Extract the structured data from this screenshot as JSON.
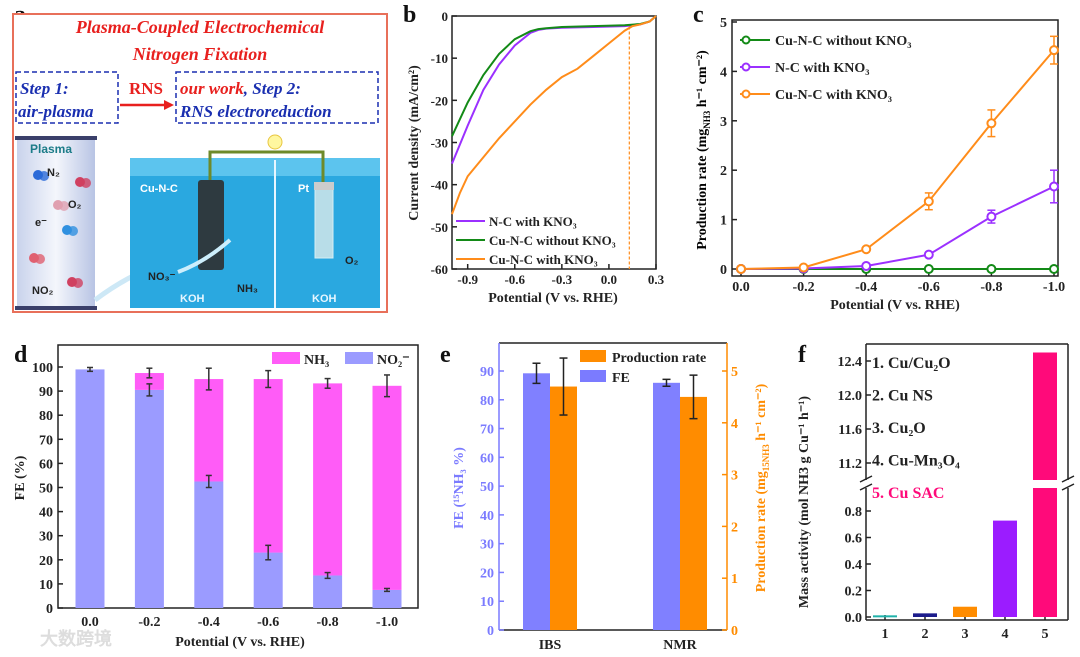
{
  "panel_labels": [
    "a",
    "b",
    "c",
    "d",
    "e",
    "f"
  ],
  "panel_a": {
    "title_line1": "Plasma-Coupled Electrochemical",
    "title_line2": "Nitrogen Fixation",
    "step1_line1": "Step 1:",
    "step1_line2": "air-plasma",
    "arrow_label": "RNS",
    "step2_line1_a": "our work",
    "step2_line1_b": ", Step 2:",
    "step2_line2": "RNS electroreduction",
    "plasma_label": "Plasma",
    "species": {
      "n2": "N₂",
      "o2": "O₂",
      "e": "e⁻",
      "no2": "NO₂",
      "no3": "NO₃⁻",
      "nh3": "NH₃",
      "o2_anode": "O₂"
    },
    "cathode_label": "Cu-N-C",
    "anode_label": "Pt",
    "electrolyte_left": "KOH",
    "electrolyte_right": "KOH",
    "colors": {
      "title": "#e8201e",
      "step": "#1a2fb0",
      "water": "#2aa8e0",
      "border": "#e8705a"
    }
  },
  "chart_data": [
    {
      "id": "b",
      "type": "line",
      "xlabel": "Potential (V vs. RHE)",
      "ylabel": "Current density (mA/cm²)",
      "xlim": [
        -1.0,
        0.3
      ],
      "ylim": [
        -60,
        0
      ],
      "xticks": [
        "-0.9",
        "-0.6",
        "-0.3",
        "0.0",
        "0.3"
      ],
      "xtick_values": [
        -0.9,
        -0.6,
        -0.3,
        0.0,
        0.3
      ],
      "yticks": [
        "0",
        "-10",
        "-20",
        "-30",
        "-40",
        "-50",
        "-60"
      ],
      "ytick_values": [
        0,
        -10,
        -20,
        -30,
        -40,
        -50,
        -60
      ],
      "onset_marker_x": 0.13,
      "series": [
        {
          "name": "N-C with KNO₃",
          "color": "#9b30ff",
          "x": [
            -1.0,
            -0.9,
            -0.8,
            -0.7,
            -0.6,
            -0.5,
            -0.45,
            -0.4,
            -0.3,
            -0.1,
            0.1,
            0.2,
            0.26,
            0.3
          ],
          "y": [
            -35,
            -26,
            -17.5,
            -11.5,
            -7,
            -4,
            -3.3,
            -3,
            -2.8,
            -2.6,
            -2.4,
            -2,
            -1.3,
            0
          ]
        },
        {
          "name": "Cu-N-C without KNO₃",
          "color": "#138a17",
          "x": [
            -1.0,
            -0.9,
            -0.8,
            -0.7,
            -0.6,
            -0.5,
            -0.45,
            -0.4,
            -0.3,
            -0.1,
            0.1,
            0.2,
            0.26,
            0.3
          ],
          "y": [
            -28.5,
            -20.5,
            -14,
            -9,
            -5.5,
            -3.6,
            -3.1,
            -2.9,
            -2.6,
            -2.4,
            -2.2,
            -1.9,
            -1.3,
            0
          ]
        },
        {
          "name": "Cu-N-C with KNO₃",
          "color": "#ff8c1a",
          "x": [
            -1.0,
            -0.95,
            -0.9,
            -0.8,
            -0.7,
            -0.6,
            -0.5,
            -0.4,
            -0.3,
            -0.2,
            -0.1,
            0.0,
            0.1,
            0.15,
            0.2,
            0.26,
            0.3
          ],
          "y": [
            -47,
            -42,
            -38,
            -33.5,
            -29,
            -25,
            -21,
            -17.5,
            -14.5,
            -12.5,
            -9.5,
            -6.5,
            -3.5,
            -2.4,
            -2,
            -1.3,
            0
          ]
        }
      ]
    },
    {
      "id": "c",
      "type": "line",
      "xlabel": "Potential (V vs. RHE)",
      "ylabel": "Production rate (mg NH3 h⁻¹ cm⁻²)",
      "ylabel_parts": {
        "main": "Production rate (mg",
        "sub": "NH3",
        "rest": " h⁻¹ cm⁻²)"
      },
      "xlim": [
        0.0,
        -1.0
      ],
      "ylim": [
        0,
        5
      ],
      "x": [
        0.0,
        -0.2,
        -0.4,
        -0.6,
        -0.8,
        -1.0
      ],
      "xticks": [
        "0.0",
        "-0.2",
        "-0.4",
        "-0.6",
        "-0.8",
        "-1.0"
      ],
      "yticks": [
        "0",
        "1",
        "2",
        "3",
        "4",
        "5"
      ],
      "series": [
        {
          "name": "Cu-N-C without KNO₃",
          "color": "#138a17",
          "values": [
            0,
            0,
            0,
            0,
            0,
            0
          ],
          "errors": [
            0,
            0,
            0,
            0,
            0,
            0
          ]
        },
        {
          "name": "N-C with KNO₃",
          "color": "#9b30ff",
          "values": [
            0,
            0.01,
            0.06,
            0.29,
            1.06,
            1.67
          ],
          "errors": [
            0,
            0,
            0.02,
            0.04,
            0.13,
            0.33
          ]
        },
        {
          "name": "Cu-N-C with KNO₃",
          "color": "#ff8c1a",
          "values": [
            0,
            0.03,
            0.4,
            1.37,
            2.95,
            4.43
          ],
          "errors": [
            0,
            0,
            0.03,
            0.17,
            0.27,
            0.28
          ]
        }
      ]
    },
    {
      "id": "d",
      "type": "bar",
      "stacked": true,
      "xlabel": "Potential (V vs. RHE)",
      "ylabel": "FE (%)",
      "categories": [
        "0.0",
        "-0.2",
        "-0.4",
        "-0.6",
        "-0.8",
        "-1.0"
      ],
      "ylim": [
        0,
        110
      ],
      "yticks": [
        "0",
        "10",
        "20",
        "30",
        "40",
        "50",
        "60",
        "70",
        "80",
        "90",
        "100"
      ],
      "series": [
        {
          "name": "NO₂⁻",
          "color": "#9b9bff",
          "values": [
            99,
            90.5,
            52.5,
            23,
            13.5,
            7.5
          ],
          "errors": [
            0.8,
            2.5,
            2.5,
            3,
            1.2,
            0.6
          ]
        },
        {
          "name": "NH₃",
          "color": "#ff5cf7",
          "values": [
            0,
            7,
            42.5,
            72,
            79.7,
            84.7
          ],
          "errors": [
            0,
            2,
            4.5,
            3.5,
            2,
            4.5
          ]
        }
      ],
      "legend": "top-right"
    },
    {
      "id": "e",
      "type": "bar",
      "categories": [
        "IBS",
        "NMR"
      ],
      "ylabel_left": "FE (¹⁵NH₃ %)",
      "ylabel_right": "Production rate (mg 15NH3 h⁻¹ cm⁻²)",
      "ylabel_right_parts": {
        "main": "Production rate (mg",
        "sub": "15NH3",
        "rest": " h⁻¹ cm⁻²)"
      },
      "ylim_left": [
        0,
        100
      ],
      "ylim_right": [
        0,
        5.5
      ],
      "yticks_left": [
        "0",
        "10",
        "20",
        "30",
        "40",
        "50",
        "60",
        "70",
        "80",
        "90"
      ],
      "yticks_right": [
        "0",
        "1",
        "2",
        "3",
        "4",
        "5"
      ],
      "series": [
        {
          "name": "FE",
          "axis": "left",
          "color": "#8080ff",
          "values": [
            89.2,
            85.9
          ],
          "errors": [
            3.5,
            1.2
          ]
        },
        {
          "name": "Production rate",
          "axis": "right",
          "color": "#ff8c00",
          "values": [
            4.7,
            4.5
          ],
          "errors": [
            0.55,
            0.42
          ]
        }
      ],
      "legend": "top-right"
    },
    {
      "id": "f",
      "type": "bar",
      "broken_axis": true,
      "ylabel": "Mass activity (mol NH3 g Cu⁻¹ h⁻¹)",
      "ylabel_parts": {
        "main": "Mass activity (mol",
        "sub1": "NH3",
        "mid": " g",
        "sub2": "Cu",
        "rest": "⁻¹ h⁻¹)"
      },
      "categories": [
        "1",
        "2",
        "3",
        "4",
        "5"
      ],
      "values": [
        0.005,
        0.02,
        0.07,
        0.72,
        12.5
      ],
      "colors": [
        "#20b2aa",
        "#1c1c8c",
        "#ff8c00",
        "#9b1cff",
        "#ff0a7a"
      ],
      "legend_items": [
        "1. Cu/Cu₂O",
        "2. Cu NS",
        "3. Cu₂O",
        "4. Cu-Mn₃O₄",
        "5. Cu SAC"
      ],
      "yticks_lower": [
        "0.0",
        "0.2",
        "0.4",
        "0.6",
        "0.8"
      ],
      "yticks_upper": [
        "11.2",
        "11.6",
        "12.0",
        "12.4"
      ],
      "ylim_lower": [
        0,
        0.95
      ],
      "ylim_upper": [
        11.0,
        12.55
      ]
    }
  ],
  "watermark": "大数跨境"
}
